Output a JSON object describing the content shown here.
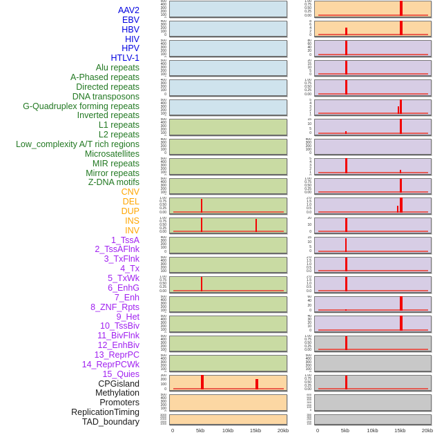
{
  "figure": {
    "colors": {
      "label_virus": "#0000e0",
      "label_repeat": "#217821",
      "label_sv": "#ffa500",
      "label_chromhmm": "#a020f0",
      "label_other": "#1a1a1a",
      "panel_virus": "#cfe3ed",
      "panel_repeat": "#c9dba3",
      "panel_sv": "#fcd7a3",
      "panel_chromhmm": "#d7cde5",
      "panel_other": "#c8c8c8",
      "spike": "#f20000",
      "panel_border": "#7a7a7a",
      "tick_text": "#2b2b2b",
      "axis_text": "#333333"
    }
  },
  "labels": [
    {
      "text": "AAV2",
      "cat": "virus"
    },
    {
      "text": "EBV",
      "cat": "virus"
    },
    {
      "text": "HBV",
      "cat": "virus"
    },
    {
      "text": "HIV",
      "cat": "virus"
    },
    {
      "text": "HPV",
      "cat": "virus"
    },
    {
      "text": "HTLV-1",
      "cat": "virus"
    },
    {
      "text": "Alu repeats",
      "cat": "repeat"
    },
    {
      "text": "A-Phased repeats",
      "cat": "repeat"
    },
    {
      "text": "Directed repeats",
      "cat": "repeat"
    },
    {
      "text": "DNA transposons",
      "cat": "repeat"
    },
    {
      "text": "G-Quadruplex forming repeats",
      "cat": "repeat"
    },
    {
      "text": "Inverted repeats",
      "cat": "repeat"
    },
    {
      "text": "L1 repeats",
      "cat": "repeat"
    },
    {
      "text": "L2 repeats",
      "cat": "repeat"
    },
    {
      "text": "Low_complexity A/T rich regions",
      "cat": "repeat"
    },
    {
      "text": "Microsatellites",
      "cat": "repeat"
    },
    {
      "text": "MIR repeats",
      "cat": "repeat"
    },
    {
      "text": "Mirror repeats",
      "cat": "repeat"
    },
    {
      "text": "Z-DNA motifs",
      "cat": "repeat"
    },
    {
      "text": "CNV",
      "cat": "sv"
    },
    {
      "text": "DEL",
      "cat": "sv"
    },
    {
      "text": "DUP",
      "cat": "sv"
    },
    {
      "text": "INS",
      "cat": "sv"
    },
    {
      "text": "INV",
      "cat": "sv"
    },
    {
      "text": "1_TssA",
      "cat": "chromhmm"
    },
    {
      "text": "2_TssAFlnk",
      "cat": "chromhmm"
    },
    {
      "text": "3_TxFlnk",
      "cat": "chromhmm"
    },
    {
      "text": "4_Tx",
      "cat": "chromhmm"
    },
    {
      "text": "5_TxWk",
      "cat": "chromhmm"
    },
    {
      "text": "6_EnhG",
      "cat": "chromhmm"
    },
    {
      "text": "7_Enh",
      "cat": "chromhmm"
    },
    {
      "text": "8_ZNF_Rpts",
      "cat": "chromhmm"
    },
    {
      "text": "9_Het",
      "cat": "chromhmm"
    },
    {
      "text": "10_TssBiv",
      "cat": "chromhmm"
    },
    {
      "text": "11_BivFlnk",
      "cat": "chromhmm"
    },
    {
      "text": "12_EnhBiv",
      "cat": "chromhmm"
    },
    {
      "text": "13_ReprPC",
      "cat": "chromhmm"
    },
    {
      "text": "14_ReprPCWk",
      "cat": "chromhmm"
    },
    {
      "text": "15_Quies",
      "cat": "chromhmm"
    },
    {
      "text": "CPGisland",
      "cat": "other"
    },
    {
      "text": "Methylation",
      "cat": "other"
    },
    {
      "text": "Promoters",
      "cat": "other"
    },
    {
      "text": "ReplicationTiming",
      "cat": "other"
    },
    {
      "text": "TAD_boundary",
      "cat": "other"
    }
  ],
  "chart_data": {
    "type": "bar",
    "title": "",
    "xlabel": "",
    "ylabel": "",
    "note": "44 mini-histogram panels over a 0-20kb window; red spikes mark peaks (kb = x position, h = peak height fraction of panel, w = bar width px). Left column = features 1-22, right column = features 23-44, top to bottom.",
    "x": {
      "ticks": [
        "0",
        "5kb",
        "10kb",
        "15kb",
        "20kb"
      ],
      "kb": [
        0,
        5,
        10,
        15,
        20
      ],
      "range_kb": [
        0,
        20
      ]
    },
    "columns": [
      {
        "name": "left",
        "panels": [
          {
            "feature": "AAV2",
            "cat": "virus",
            "yticks": [
              "500",
              "400",
              "300",
              "200",
              "100",
              "0"
            ],
            "spikes": []
          },
          {
            "feature": "EBV",
            "cat": "virus",
            "yticks": [
              "400",
              "300",
              "200",
              "100",
              "0"
            ],
            "spikes": []
          },
          {
            "feature": "HBV",
            "cat": "virus",
            "yticks": [
              "500",
              "400",
              "300",
              "200",
              "100",
              "0"
            ],
            "spikes": []
          },
          {
            "feature": "HIV",
            "cat": "virus",
            "yticks": [
              "500",
              "400",
              "300",
              "200",
              "100",
              "0"
            ],
            "spikes": []
          },
          {
            "feature": "HPV",
            "cat": "virus",
            "yticks": [
              "400",
              "300",
              "200",
              "100",
              "0"
            ],
            "spikes": []
          },
          {
            "feature": "HTLV-1",
            "cat": "virus",
            "yticks": [
              "500",
              "400",
              "300",
              "200",
              "100",
              "0"
            ],
            "spikes": []
          },
          {
            "feature": "Alu repeats",
            "cat": "repeat",
            "yticks": [
              "500",
              "400",
              "300",
              "200",
              "100",
              "0"
            ],
            "spikes": []
          },
          {
            "feature": "A-Phased repeats",
            "cat": "repeat",
            "yticks": [
              "400",
              "300",
              "200",
              "100",
              "0"
            ],
            "spikes": []
          },
          {
            "feature": "Directed repeats",
            "cat": "repeat",
            "yticks": [
              "500",
              "400",
              "300",
              "200",
              "100",
              "0"
            ],
            "spikes": []
          },
          {
            "feature": "DNA transposons",
            "cat": "repeat",
            "yticks": [
              "500",
              "400",
              "300",
              "200",
              "100",
              "0"
            ],
            "spikes": []
          },
          {
            "feature": "G-Quadruplex forming repeats",
            "cat": "repeat",
            "yticks": [
              "1.00",
              "0.75",
              "0.50",
              "0.25",
              "0.00"
            ],
            "spikes": [
              {
                "kb": 5,
                "h": 0.92,
                "w": 2
              }
            ]
          },
          {
            "feature": "Inverted repeats",
            "cat": "repeat",
            "yticks": [
              "1.00",
              "0.75",
              "0.50",
              "0.25",
              "0.00"
            ],
            "spikes": [
              {
                "kb": 5,
                "h": 1.0,
                "w": 2
              },
              {
                "kb": 15,
                "h": 0.88,
                "w": 2
              }
            ]
          },
          {
            "feature": "L1 repeats",
            "cat": "repeat",
            "yticks": [
              "400",
              "300",
              "200",
              "100",
              "0"
            ],
            "spikes": []
          },
          {
            "feature": "L2 repeats",
            "cat": "repeat",
            "yticks": [
              "500",
              "400",
              "300",
              "200",
              "100"
            ],
            "spikes": []
          },
          {
            "feature": "Low_complexity A/T rich regions",
            "cat": "repeat",
            "yticks": [
              "1.00",
              "0.75",
              "0.50",
              "0.25",
              "0.00"
            ],
            "spikes": [
              {
                "kb": 5,
                "h": 0.95,
                "w": 2
              }
            ]
          },
          {
            "feature": "Microsatellites",
            "cat": "repeat",
            "yticks": [
              "500",
              "400",
              "300",
              "200",
              "100",
              "0"
            ],
            "spikes": []
          },
          {
            "feature": "MIR repeats",
            "cat": "repeat",
            "yticks": [
              "500",
              "400",
              "300",
              "200",
              "100",
              "0"
            ],
            "spikes": []
          },
          {
            "feature": "Mirror repeats",
            "cat": "repeat",
            "yticks": [
              "500",
              "400",
              "300",
              "200",
              "100",
              "0"
            ],
            "spikes": []
          },
          {
            "feature": "Z-DNA motifs",
            "cat": "repeat",
            "yticks": [
              "500",
              "400",
              "300",
              "200",
              "100",
              "0"
            ],
            "spikes": []
          },
          {
            "feature": "CNV",
            "cat": "sv",
            "yticks": [
              "300",
              "200",
              "100",
              "0"
            ],
            "spikes": [
              {
                "kb": 5,
                "h": 1.0,
                "w": 4
              },
              {
                "kb": 15,
                "h": 0.7,
                "w": 4
              }
            ]
          },
          {
            "feature": "DEL",
            "cat": "sv",
            "yticks": [
              "500",
              "400",
              "300",
              "200",
              "100",
              "0"
            ],
            "spikes": []
          },
          {
            "feature": "DUP",
            "cat": "sv",
            "yticks": [
              "3000",
              "2500",
              "2000",
              "1500",
              "1000",
              "500",
              "0"
            ],
            "spikes": []
          }
        ]
      },
      {
        "name": "right",
        "panels": [
          {
            "feature": "INS",
            "cat": "sv",
            "yticks": [
              "1.00",
              "0.75",
              "0.50",
              "0.25",
              "0.00"
            ],
            "spikes": [
              {
                "kb": 15,
                "h": 1.0,
                "w": 4
              }
            ]
          },
          {
            "feature": "INV",
            "cat": "sv",
            "yticks": [
              "8",
              "6",
              "4",
              "2",
              "0"
            ],
            "spikes": [
              {
                "kb": 5,
                "h": 0.5,
                "w": 3
              },
              {
                "kb": 15,
                "h": 1.0,
                "w": 4
              }
            ]
          },
          {
            "feature": "1_TssA",
            "cat": "chromhmm",
            "yticks": [
              "80",
              "60",
              "40",
              "20",
              "0"
            ],
            "spikes": [
              {
                "kb": 5,
                "h": 0.95,
                "w": 3
              }
            ]
          },
          {
            "feature": "2_TssAFlnk",
            "cat": "chromhmm",
            "yticks": [
              "20",
              "15",
              "10",
              "5",
              "0"
            ],
            "spikes": [
              {
                "kb": 5,
                "h": 0.95,
                "w": 3
              }
            ]
          },
          {
            "feature": "3_TxFlnk",
            "cat": "chromhmm",
            "yticks": [
              "1.00",
              "0.75",
              "0.50",
              "0.25",
              "0.00"
            ],
            "spikes": [
              {
                "kb": 5,
                "h": 0.95,
                "w": 3
              }
            ]
          },
          {
            "feature": "4_Tx",
            "cat": "chromhmm",
            "yticks": [
              "5",
              "4",
              "3",
              "2",
              "1",
              "0"
            ],
            "spikes": [
              {
                "kb": 14.6,
                "h": 0.5,
                "w": 2
              },
              {
                "kb": 15,
                "h": 1.0,
                "w": 3
              }
            ]
          },
          {
            "feature": "5_TxWk",
            "cat": "chromhmm",
            "yticks": [
              "15",
              "10",
              "5",
              "0"
            ],
            "spikes": [
              {
                "kb": 5,
                "h": 0.15,
                "w": 2
              },
              {
                "kb": 15,
                "h": 1.0,
                "w": 3
              }
            ]
          },
          {
            "feature": "6_EnhG",
            "cat": "chromhmm",
            "yticks": [
              "400",
              "300",
              "200",
              "100",
              "0"
            ],
            "spikes": []
          },
          {
            "feature": "7_Enh",
            "cat": "chromhmm",
            "yticks": [
              "5",
              "4",
              "3",
              "2",
              "1",
              "0"
            ],
            "spikes": [
              {
                "kb": 5,
                "h": 1.0,
                "w": 3
              },
              {
                "kb": 15,
                "h": 0.2,
                "w": 2
              }
            ]
          },
          {
            "feature": "8_ZNF_Rpts",
            "cat": "chromhmm",
            "yticks": [
              "1.00",
              "0.75",
              "0.50",
              "0.25",
              "0.00"
            ],
            "spikes": [
              {
                "kb": 15,
                "h": 0.95,
                "w": 3
              }
            ]
          },
          {
            "feature": "9_Het",
            "cat": "chromhmm",
            "yticks": [
              "2.0",
              "1.5",
              "1.0",
              "0.5",
              "0.0"
            ],
            "spikes": [
              {
                "kb": 14.5,
                "h": 0.45,
                "w": 2
              },
              {
                "kb": 15,
                "h": 1.0,
                "w": 4
              }
            ]
          },
          {
            "feature": "10_TssBiv",
            "cat": "chromhmm",
            "yticks": [
              "20",
              "10",
              "0"
            ],
            "spikes": [
              {
                "kb": 5,
                "h": 0.95,
                "w": 3
              }
            ]
          },
          {
            "feature": "11_BivFlnk",
            "cat": "chromhmm",
            "yticks": [
              "15",
              "10",
              "5",
              "0"
            ],
            "spikes": [
              {
                "kb": 5,
                "h": 0.9,
                "w": 2
              }
            ]
          },
          {
            "feature": "12_EnhBiv",
            "cat": "chromhmm",
            "yticks": [
              "2.0",
              "1.5",
              "1.0",
              "0.5",
              "0.0"
            ],
            "spikes": [
              {
                "kb": 5,
                "h": 0.95,
                "w": 3
              }
            ]
          },
          {
            "feature": "13_ReprPC",
            "cat": "chromhmm",
            "yticks": [
              "2.0",
              "1.5",
              "1.0",
              "0.5",
              "0.0"
            ],
            "spikes": [
              {
                "kb": 5,
                "h": 0.95,
                "w": 3
              }
            ]
          },
          {
            "feature": "14_ReprPCWk",
            "cat": "chromhmm",
            "yticks": [
              "60",
              "40",
              "20",
              "0"
            ],
            "spikes": [
              {
                "kb": 5,
                "h": 0.1,
                "w": 2
              },
              {
                "kb": 15,
                "h": 1.0,
                "w": 4
              }
            ]
          },
          {
            "feature": "15_Quies",
            "cat": "chromhmm",
            "yticks": [
              "40",
              "30",
              "20",
              "10",
              "0"
            ],
            "spikes": [
              {
                "kb": 15,
                "h": 1.0,
                "w": 4
              }
            ]
          },
          {
            "feature": "CPGisland",
            "cat": "other",
            "yticks": [
              "1.00",
              "0.75",
              "0.50",
              "0.25",
              "0.00"
            ],
            "spikes": [
              {
                "kb": 5,
                "h": 0.92,
                "w": 3
              }
            ]
          },
          {
            "feature": "Methylation",
            "cat": "other",
            "yticks": [
              "500",
              "400",
              "300",
              "200",
              "100",
              "0"
            ],
            "spikes": []
          },
          {
            "feature": "Promoters",
            "cat": "other",
            "yticks": [
              "1.00",
              "0.75",
              "0.50",
              "0.25",
              "0.00"
            ],
            "spikes": [
              {
                "kb": 5,
                "h": 0.92,
                "w": 3
              }
            ]
          },
          {
            "feature": "ReplicationTiming",
            "cat": "other",
            "yticks": [
              "600",
              "500",
              "400",
              "300",
              "200",
              "100",
              "0"
            ],
            "spikes": []
          },
          {
            "feature": "TAD_boundary",
            "cat": "other",
            "yticks": [
              "350",
              "300",
              "250",
              "200",
              "150",
              "100",
              "50",
              "0"
            ],
            "spikes": []
          }
        ]
      }
    ]
  }
}
